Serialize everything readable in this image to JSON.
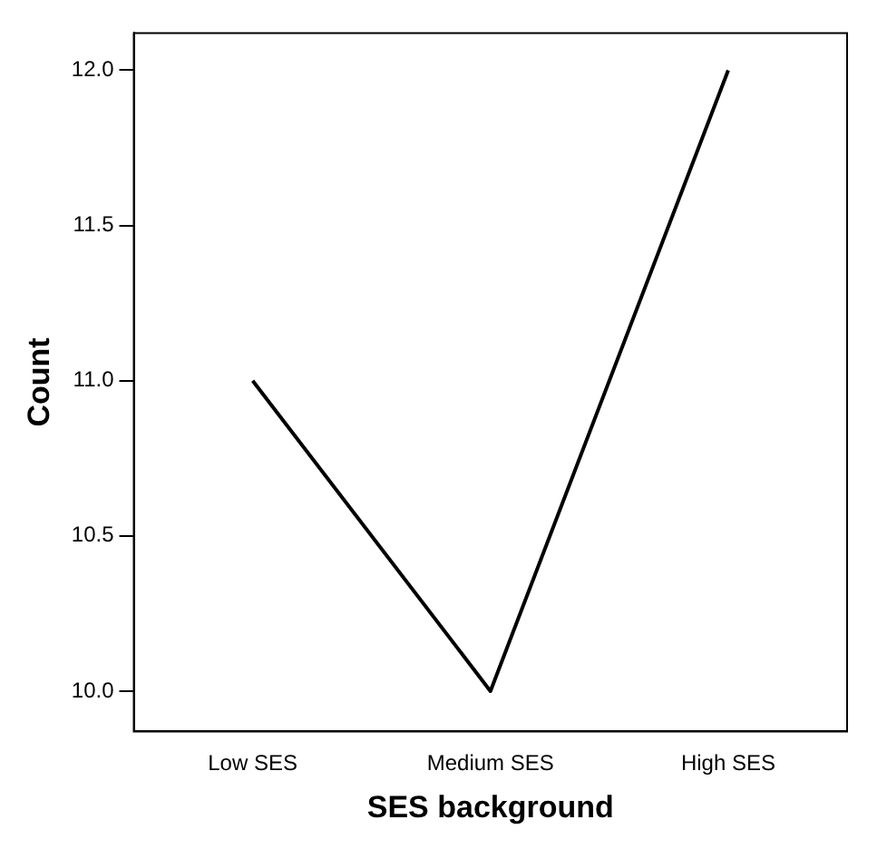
{
  "chart_data": {
    "type": "line",
    "xlabel": "SES background",
    "ylabel": "Count",
    "categories": [
      "Low SES",
      "Medium SES",
      "High SES"
    ],
    "series": [
      {
        "color": "#000000",
        "values": [
          11,
          10,
          12
        ]
      }
    ],
    "ylim": [
      9.87,
      12.12
    ],
    "yticks": [
      {
        "value": 10,
        "label": "10.0"
      },
      {
        "value": 10.5,
        "label": "10.5"
      },
      {
        "value": 11,
        "label": "11.0"
      },
      {
        "value": 11.5,
        "label": "11.5"
      },
      {
        "value": 12,
        "label": "12.0"
      }
    ],
    "grid": false,
    "legend": false,
    "marker": "none",
    "line_style": "solid"
  }
}
